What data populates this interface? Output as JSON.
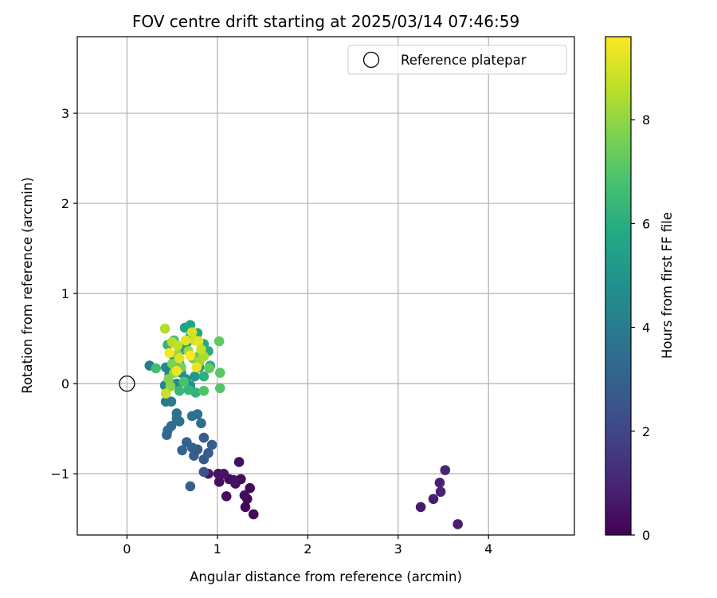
{
  "chart_data": {
    "type": "scatter",
    "title": "FOV centre drift starting at 2025/03/14 07:46:59",
    "xlabel": "Angular distance from reference (arcmin)",
    "ylabel": "Rotation from reference (arcmin)",
    "xlim": [
      -0.55,
      4.95
    ],
    "ylim": [
      -1.68,
      3.85
    ],
    "xticks": [
      0,
      1,
      2,
      3,
      4
    ],
    "yticks": [
      -1,
      0,
      1,
      2,
      3
    ],
    "xtick_labels": [
      "0",
      "1",
      "2",
      "3",
      "4"
    ],
    "ytick_labels": [
      "−1",
      "0",
      "1",
      "2",
      "3"
    ],
    "grid": true,
    "legend": {
      "placement": "top-right",
      "entries": [
        "Reference platepar"
      ]
    },
    "colorbar": {
      "label": "Hours from first FF file",
      "colormap": "viridis",
      "range": [
        0,
        9.6
      ],
      "ticks": [
        0,
        2,
        4,
        6,
        8
      ],
      "tick_labels": [
        "0",
        "2",
        "4",
        "6",
        "8"
      ]
    },
    "reference_point": {
      "x": 0,
      "y": 0,
      "label": "Reference platepar"
    },
    "points": [
      {
        "x": 3.66,
        "y": -1.56,
        "c": 0.8
      },
      {
        "x": 3.25,
        "y": -1.37,
        "c": 0.7
      },
      {
        "x": 3.39,
        "y": -1.28,
        "c": 0.8
      },
      {
        "x": 3.47,
        "y": -1.2,
        "c": 0.9
      },
      {
        "x": 3.46,
        "y": -1.1,
        "c": 0.9
      },
      {
        "x": 3.52,
        "y": -0.96,
        "c": 1.0
      },
      {
        "x": 1.4,
        "y": -1.45,
        "c": 0.2
      },
      {
        "x": 1.31,
        "y": -1.37,
        "c": 0.2
      },
      {
        "x": 1.33,
        "y": -1.28,
        "c": 0.2
      },
      {
        "x": 1.3,
        "y": -1.24,
        "c": 0.3
      },
      {
        "x": 1.36,
        "y": -1.16,
        "c": 0.2
      },
      {
        "x": 1.26,
        "y": -1.06,
        "c": 0.3
      },
      {
        "x": 1.2,
        "y": -1.11,
        "c": 0.3
      },
      {
        "x": 1.24,
        "y": -0.87,
        "c": 0.4
      },
      {
        "x": 1.1,
        "y": -1.25,
        "c": 0.3
      },
      {
        "x": 1.13,
        "y": -1.06,
        "c": 0.3
      },
      {
        "x": 1.02,
        "y": -1.09,
        "c": 0.4
      },
      {
        "x": 1.01,
        "y": -1.0,
        "c": 0.5
      },
      {
        "x": 1.07,
        "y": -1.0,
        "c": 0.5
      },
      {
        "x": 0.9,
        "y": -1.0,
        "c": 0.6
      },
      {
        "x": 1.18,
        "y": -1.07,
        "c": 0.4
      },
      {
        "x": 0.7,
        "y": -1.14,
        "c": 2.9
      },
      {
        "x": 0.85,
        "y": -0.98,
        "c": 2.4
      },
      {
        "x": 0.74,
        "y": -0.8,
        "c": 2.9
      },
      {
        "x": 0.85,
        "y": -0.84,
        "c": 2.6
      },
      {
        "x": 0.9,
        "y": -0.77,
        "c": 2.8
      },
      {
        "x": 0.78,
        "y": -0.73,
        "c": 2.7
      },
      {
        "x": 0.72,
        "y": -0.71,
        "c": 2.9
      },
      {
        "x": 0.61,
        "y": -0.74,
        "c": 3.0
      },
      {
        "x": 0.66,
        "y": -0.65,
        "c": 3.0
      },
      {
        "x": 0.94,
        "y": -0.68,
        "c": 2.8
      },
      {
        "x": 0.85,
        "y": -0.6,
        "c": 2.8
      },
      {
        "x": 0.44,
        "y": -0.57,
        "c": 3.2
      },
      {
        "x": 0.45,
        "y": -0.52,
        "c": 3.3
      },
      {
        "x": 0.49,
        "y": -0.47,
        "c": 3.4
      },
      {
        "x": 0.55,
        "y": -0.39,
        "c": 3.6
      },
      {
        "x": 0.58,
        "y": -0.42,
        "c": 3.5
      },
      {
        "x": 0.55,
        "y": -0.33,
        "c": 3.7
      },
      {
        "x": 0.72,
        "y": -0.36,
        "c": 3.6
      },
      {
        "x": 0.78,
        "y": -0.34,
        "c": 3.7
      },
      {
        "x": 0.82,
        "y": -0.44,
        "c": 3.5
      },
      {
        "x": 0.43,
        "y": -0.2,
        "c": 3.9
      },
      {
        "x": 0.49,
        "y": -0.2,
        "c": 3.9
      },
      {
        "x": 0.25,
        "y": 0.2,
        "c": 4.0
      },
      {
        "x": 0.42,
        "y": -0.02,
        "c": 4.2
      },
      {
        "x": 0.47,
        "y": 0.1,
        "c": 4.3
      },
      {
        "x": 0.43,
        "y": 0.18,
        "c": 4.4
      },
      {
        "x": 0.55,
        "y": 0.0,
        "c": 4.6
      },
      {
        "x": 0.6,
        "y": 0.12,
        "c": 4.7
      },
      {
        "x": 0.65,
        "y": 0.05,
        "c": 4.8
      },
      {
        "x": 0.7,
        "y": -0.02,
        "c": 4.9
      },
      {
        "x": 0.75,
        "y": 0.08,
        "c": 5.0
      },
      {
        "x": 0.8,
        "y": 0.18,
        "c": 5.1
      },
      {
        "x": 0.58,
        "y": 0.22,
        "c": 5.0
      },
      {
        "x": 0.52,
        "y": 0.3,
        "c": 5.2
      },
      {
        "x": 0.62,
        "y": 0.38,
        "c": 5.3
      },
      {
        "x": 0.66,
        "y": 0.45,
        "c": 5.4
      },
      {
        "x": 0.7,
        "y": 0.52,
        "c": 5.4
      },
      {
        "x": 0.64,
        "y": 0.62,
        "c": 5.5
      },
      {
        "x": 0.7,
        "y": 0.65,
        "c": 5.6
      },
      {
        "x": 0.78,
        "y": 0.56,
        "c": 5.7
      },
      {
        "x": 0.85,
        "y": 0.44,
        "c": 5.8
      },
      {
        "x": 0.9,
        "y": 0.36,
        "c": 5.9
      },
      {
        "x": 0.92,
        "y": 0.2,
        "c": 6.0
      },
      {
        "x": 0.85,
        "y": 0.08,
        "c": 6.1
      },
      {
        "x": 0.76,
        "y": -0.1,
        "c": 6.2
      },
      {
        "x": 0.68,
        "y": -0.07,
        "c": 6.3
      },
      {
        "x": 0.58,
        "y": -0.08,
        "c": 6.4
      },
      {
        "x": 0.45,
        "y": 0.43,
        "c": 6.3
      },
      {
        "x": 0.32,
        "y": 0.17,
        "c": 6.6
      },
      {
        "x": 0.52,
        "y": 0.48,
        "c": 6.7
      },
      {
        "x": 0.63,
        "y": 0.02,
        "c": 6.8
      },
      {
        "x": 0.85,
        "y": -0.08,
        "c": 6.9
      },
      {
        "x": 1.03,
        "y": -0.05,
        "c": 7.0
      },
      {
        "x": 1.03,
        "y": 0.12,
        "c": 7.1
      },
      {
        "x": 1.02,
        "y": 0.47,
        "c": 7.2
      },
      {
        "x": 0.91,
        "y": 0.17,
        "c": 7.3
      },
      {
        "x": 0.8,
        "y": 0.31,
        "c": 7.3
      },
      {
        "x": 0.73,
        "y": 0.28,
        "c": 7.5
      },
      {
        "x": 0.6,
        "y": 0.18,
        "c": 7.6
      },
      {
        "x": 0.5,
        "y": 0.22,
        "c": 7.7
      },
      {
        "x": 0.46,
        "y": 0.05,
        "c": 7.8
      },
      {
        "x": 0.48,
        "y": -0.03,
        "c": 7.9
      },
      {
        "x": 0.52,
        "y": 0.12,
        "c": 8.0
      },
      {
        "x": 0.56,
        "y": 0.32,
        "c": 8.1
      },
      {
        "x": 0.68,
        "y": 0.36,
        "c": 8.2
      },
      {
        "x": 0.8,
        "y": 0.24,
        "c": 8.3
      },
      {
        "x": 0.85,
        "y": 0.3,
        "c": 8.4
      },
      {
        "x": 0.42,
        "y": 0.61,
        "c": 8.5
      },
      {
        "x": 0.5,
        "y": 0.46,
        "c": 8.6
      },
      {
        "x": 0.56,
        "y": 0.42,
        "c": 8.7
      },
      {
        "x": 0.43,
        "y": -0.11,
        "c": 8.8
      },
      {
        "x": 0.75,
        "y": 0.48,
        "c": 8.9
      },
      {
        "x": 0.72,
        "y": 0.57,
        "c": 9.0
      },
      {
        "x": 0.58,
        "y": 0.28,
        "c": 9.1
      },
      {
        "x": 0.65,
        "y": 0.48,
        "c": 9.2
      },
      {
        "x": 0.77,
        "y": 0.18,
        "c": 9.3
      },
      {
        "x": 0.55,
        "y": 0.14,
        "c": 9.4
      },
      {
        "x": 0.47,
        "y": 0.34,
        "c": 9.5
      },
      {
        "x": 0.7,
        "y": 0.31,
        "c": 9.6
      },
      {
        "x": 0.79,
        "y": 0.47,
        "c": 9.2
      },
      {
        "x": 0.82,
        "y": 0.38,
        "c": 8.8
      }
    ]
  }
}
